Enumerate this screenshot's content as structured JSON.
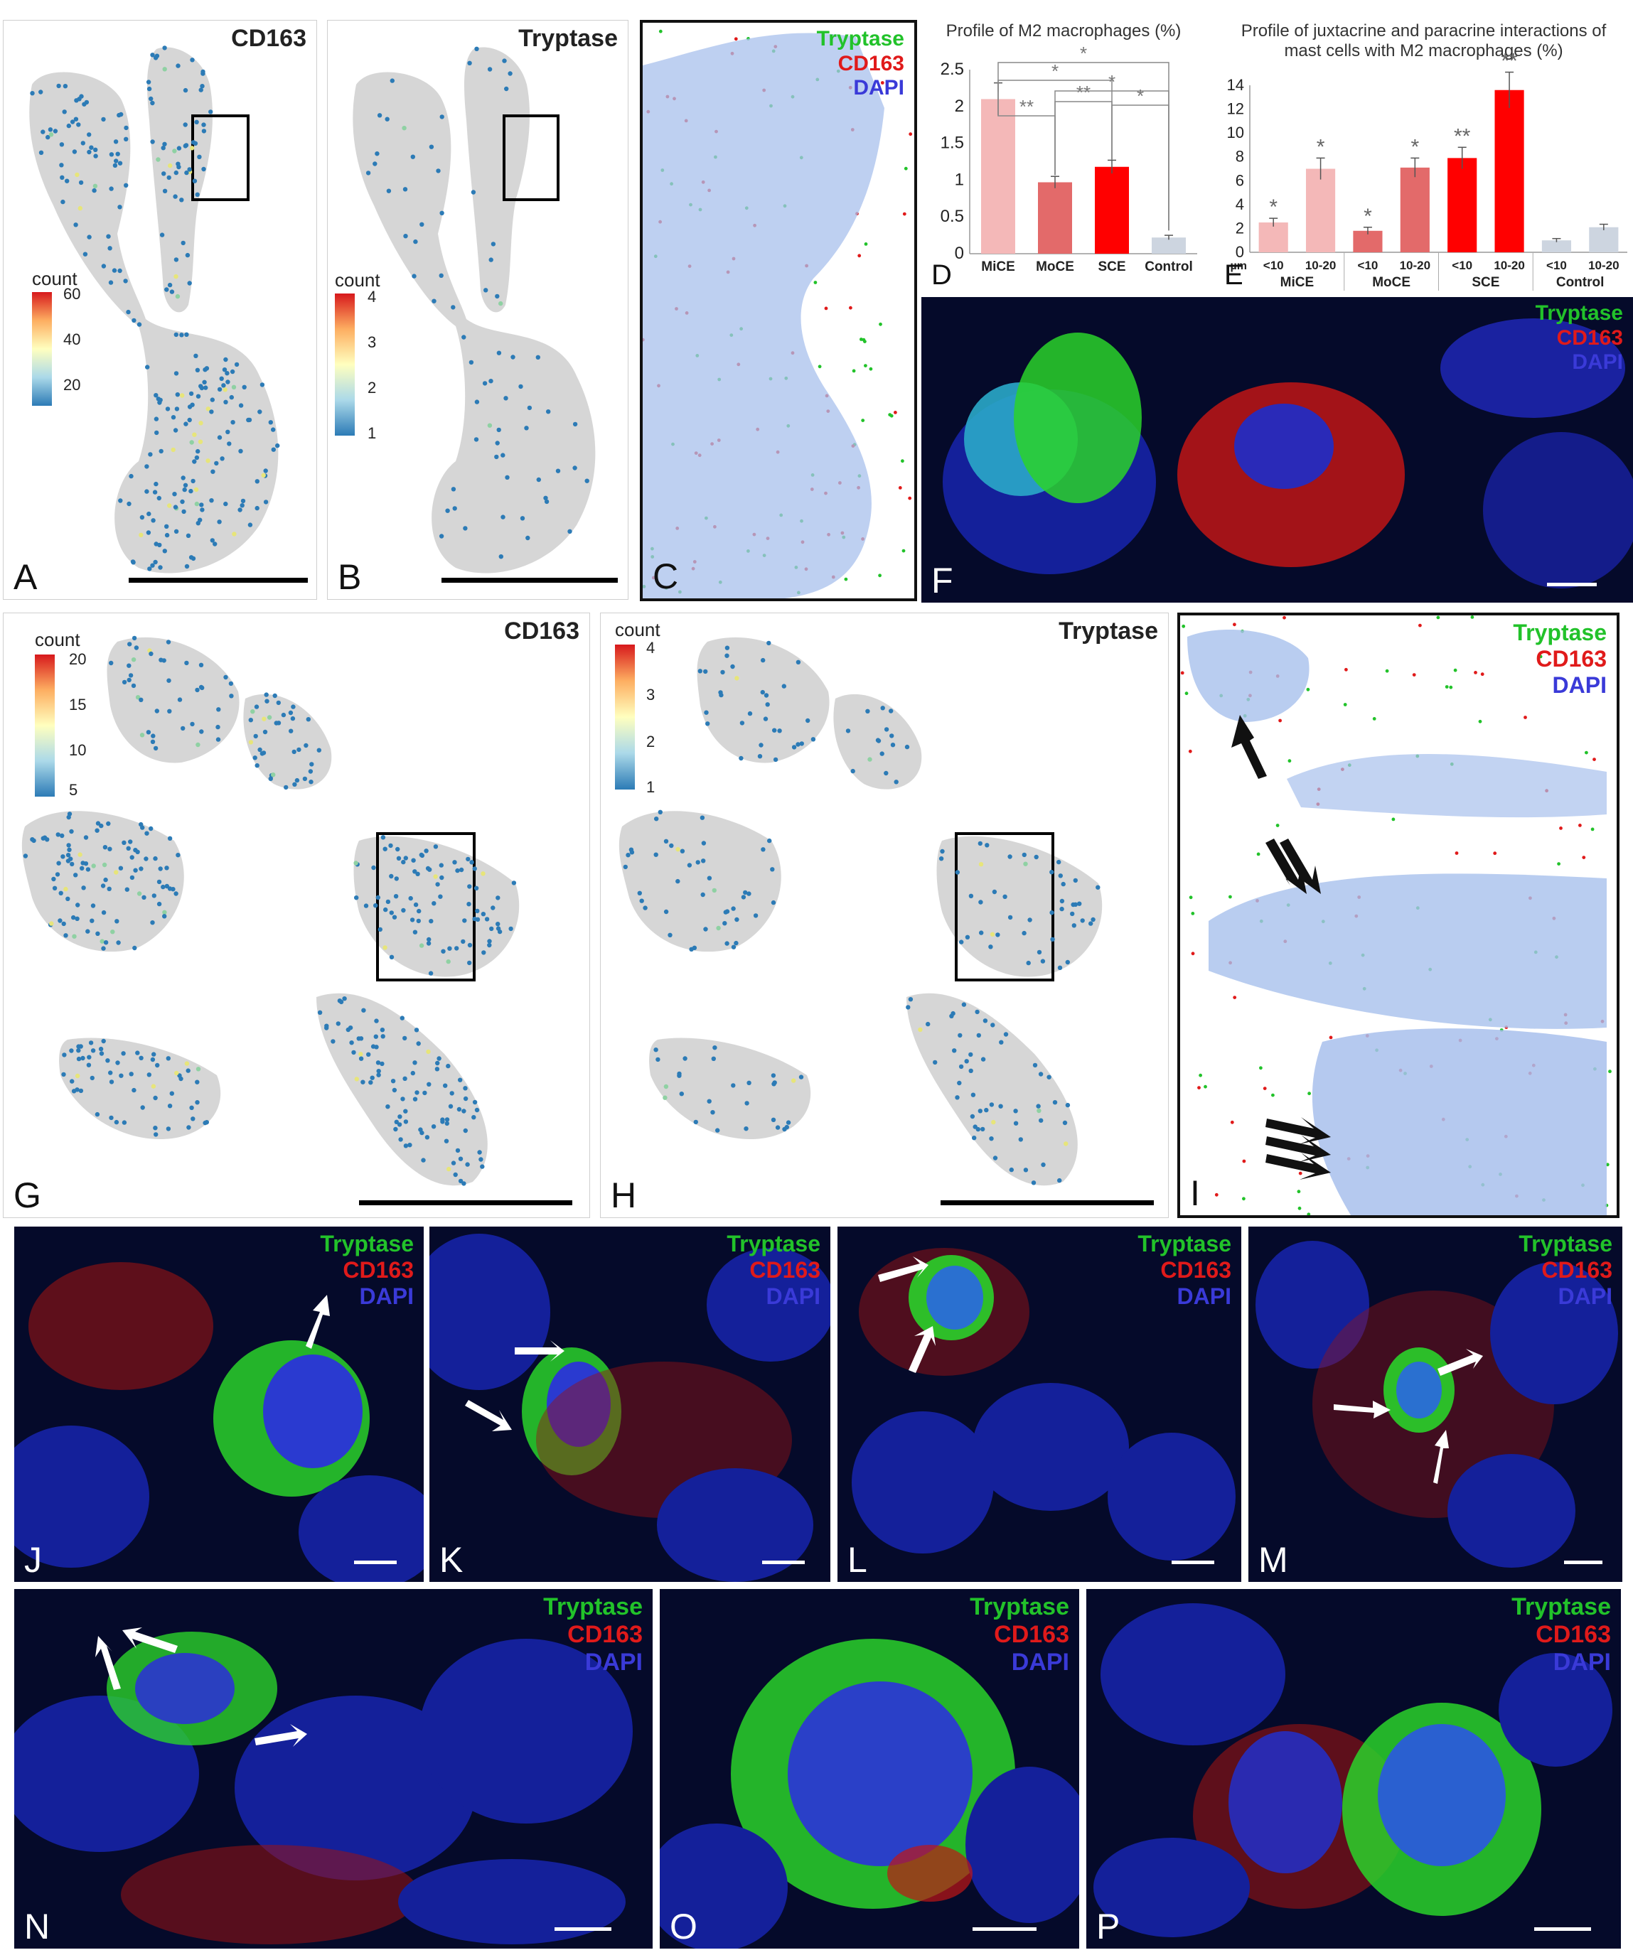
{
  "panels": {
    "A": {
      "label": "A",
      "title": "CD163",
      "legend": {
        "title": "count",
        "ticks": [
          "60",
          "40",
          "20"
        ]
      }
    },
    "B": {
      "label": "B",
      "title": "Tryptase",
      "legend": {
        "title": "count",
        "ticks": [
          "4",
          "3",
          "2",
          "1"
        ]
      }
    },
    "C": {
      "label": "C"
    },
    "D": {
      "label": "D"
    },
    "E": {
      "label": "E"
    },
    "F": {
      "label": "F"
    },
    "G": {
      "label": "G",
      "title": "CD163",
      "legend": {
        "title": "count",
        "ticks": [
          "20",
          "15",
          "10",
          "5"
        ]
      }
    },
    "H": {
      "label": "H",
      "title": "Tryptase",
      "legend": {
        "title": "count",
        "ticks": [
          "4",
          "3",
          "2",
          "1"
        ]
      }
    },
    "I": {
      "label": "I"
    },
    "J": {
      "label": "J"
    },
    "K": {
      "label": "K"
    },
    "L": {
      "label": "L"
    },
    "M": {
      "label": "M"
    },
    "N": {
      "label": "N"
    },
    "O": {
      "label": "O"
    },
    "P": {
      "label": "P"
    }
  },
  "channel_legend": {
    "tryptase": "Tryptase",
    "cd163": "CD163",
    "dapi": "DAPI"
  },
  "colors": {
    "tryptase": "#22c22a",
    "cd163": "#e01a1a",
    "dapi": "#3a3ad8",
    "hex_low": "#2c7bb6",
    "hex_high": "#d7191c",
    "background_cells": "#cccccc"
  },
  "chart_data": [
    {
      "panel": "D",
      "type": "bar",
      "title": "Profile of M2 macrophages (%)",
      "categories": [
        "MiCE",
        "MoCE",
        "SCE",
        "Control"
      ],
      "values": [
        2.1,
        0.97,
        1.18,
        0.22
      ],
      "errors": [
        0.22,
        0.08,
        0.09,
        0.03
      ],
      "colors": [
        "#f4b8b8",
        "#e36a6a",
        "#ff0000",
        "#cdd5e0"
      ],
      "ylim": [
        0,
        2.5
      ],
      "yticks": [
        "0",
        "0.5",
        "1",
        "1.5",
        "2",
        "2.5"
      ],
      "significance": [
        "**",
        "*",
        "**",
        "*",
        "*",
        "*"
      ]
    },
    {
      "panel": "E",
      "type": "bar",
      "title": "Profile of juxtacrine and paracrine interactions of mast cells with M2 macrophages (%)",
      "groups": [
        "MiCE",
        "MoCE",
        "SCE",
        "Control"
      ],
      "unit_label": "µm",
      "categories": [
        "<10",
        "10-20",
        "<10",
        "10-20",
        "<10",
        "10-20",
        "<10",
        "10-20"
      ],
      "values": [
        2.5,
        7.0,
        1.8,
        7.1,
        7.9,
        13.6,
        1.0,
        2.1
      ],
      "errors": [
        0.35,
        0.9,
        0.3,
        0.8,
        0.9,
        1.5,
        0.15,
        0.25
      ],
      "colors": [
        "#f4b8b8",
        "#f4b8b8",
        "#e36a6a",
        "#e36a6a",
        "#ff0000",
        "#ff0000",
        "#cdd5e0",
        "#cdd5e0"
      ],
      "ylim": [
        0,
        14
      ],
      "yticks": [
        "0",
        "2",
        "4",
        "6",
        "8",
        "10",
        "12",
        "14"
      ],
      "significance": [
        "*",
        "*",
        "*",
        "*",
        "**",
        "**",
        "",
        ""
      ]
    }
  ]
}
